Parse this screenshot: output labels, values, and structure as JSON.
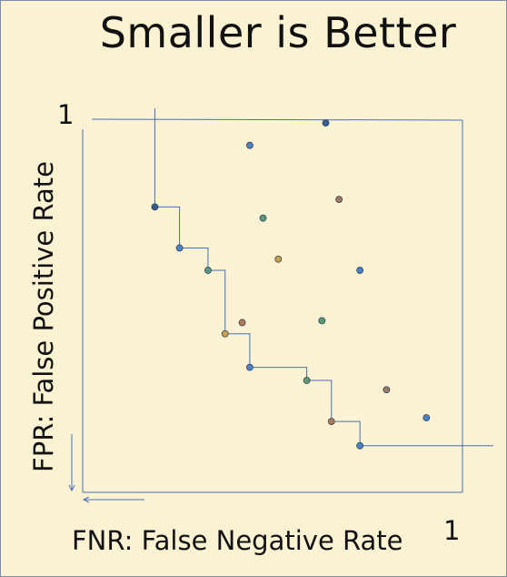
{
  "title": "Smaller is Better",
  "axes": {
    "y_label": "FPR: False Positive Rate",
    "x_label": "FNR: False Negative Rate",
    "y_max_label": "1",
    "x_max_label": "1"
  },
  "chart_data": {
    "type": "scatter",
    "title": "Smaller is Better",
    "xlabel": "FNR: False Negative Rate",
    "ylabel": "FPR: False Positive Rate",
    "xlim": [
      0,
      1
    ],
    "ylim": [
      0,
      1
    ],
    "frontier_points": [
      {
        "x": 0.19,
        "y": 0.765,
        "color": "#3a5c94"
      },
      {
        "x": 0.255,
        "y": 0.655,
        "color": "#4b82c6"
      },
      {
        "x": 0.33,
        "y": 0.595,
        "color": "#5a9a8a"
      },
      {
        "x": 0.375,
        "y": 0.425,
        "color": "#c8a24e"
      },
      {
        "x": 0.44,
        "y": 0.335,
        "color": "#4b82c6"
      },
      {
        "x": 0.59,
        "y": 0.3,
        "color": "#5a9a6e"
      },
      {
        "x": 0.655,
        "y": 0.19,
        "color": "#b07a5a"
      },
      {
        "x": 0.73,
        "y": 0.125,
        "color": "#4b82c6"
      }
    ],
    "other_points": [
      {
        "x": 0.64,
        "y": 0.99,
        "color": "#3a5c94"
      },
      {
        "x": 0.44,
        "y": 0.93,
        "color": "#4b82c6"
      },
      {
        "x": 0.675,
        "y": 0.785,
        "color": "#9a7a64"
      },
      {
        "x": 0.475,
        "y": 0.735,
        "color": "#5a9a80"
      },
      {
        "x": 0.515,
        "y": 0.625,
        "color": "#c8a24e"
      },
      {
        "x": 0.73,
        "y": 0.595,
        "color": "#4b82c6"
      },
      {
        "x": 0.42,
        "y": 0.455,
        "color": "#b07a5a"
      },
      {
        "x": 0.63,
        "y": 0.46,
        "color": "#5a9a70"
      },
      {
        "x": 0.8,
        "y": 0.275,
        "color": "#9a7a64"
      },
      {
        "x": 0.905,
        "y": 0.2,
        "color": "#4b82c6"
      }
    ],
    "line_color": "#4a6fb0"
  }
}
